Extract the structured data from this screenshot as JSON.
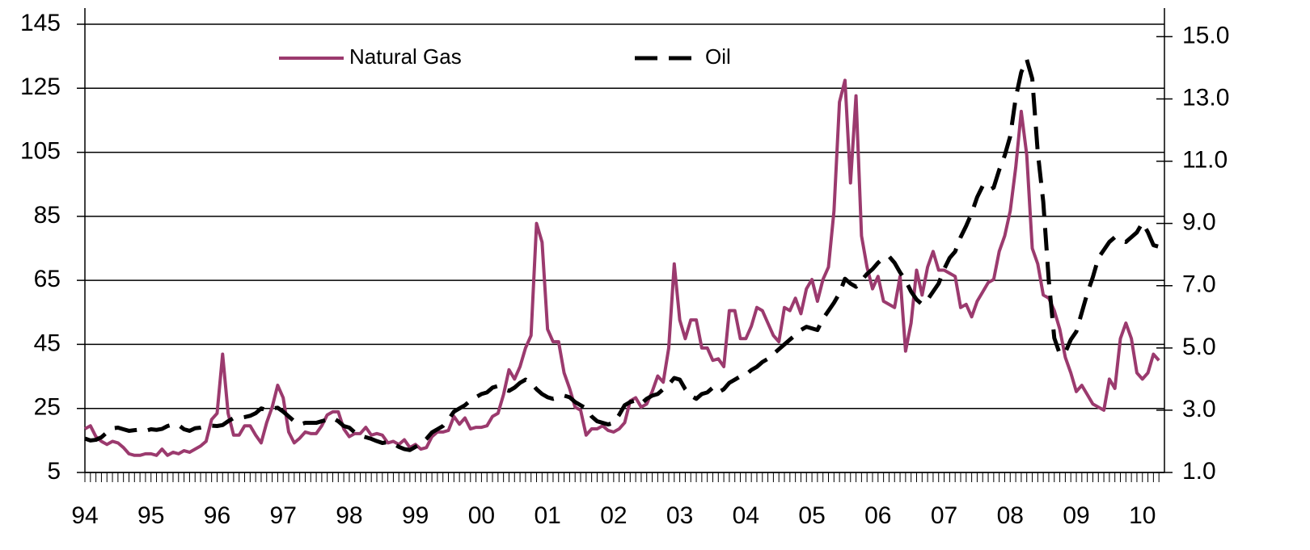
{
  "chart_data": {
    "type": "line",
    "categories": [
      "94",
      null,
      null,
      null,
      null,
      null,
      null,
      null,
      null,
      null,
      null,
      null,
      "95",
      null,
      null,
      null,
      null,
      null,
      null,
      null,
      null,
      null,
      null,
      null,
      "96",
      null,
      null,
      null,
      null,
      null,
      null,
      null,
      null,
      null,
      null,
      null,
      "97",
      null,
      null,
      null,
      null,
      null,
      null,
      null,
      null,
      null,
      null,
      null,
      "98",
      null,
      null,
      null,
      null,
      null,
      null,
      null,
      null,
      null,
      null,
      null,
      "99",
      null,
      null,
      null,
      null,
      null,
      null,
      null,
      null,
      null,
      null,
      null,
      "00",
      null,
      null,
      null,
      null,
      null,
      null,
      null,
      null,
      null,
      null,
      null,
      "01",
      null,
      null,
      null,
      null,
      null,
      null,
      null,
      null,
      null,
      null,
      null,
      "02",
      null,
      null,
      null,
      null,
      null,
      null,
      null,
      null,
      null,
      null,
      null,
      "03",
      null,
      null,
      null,
      null,
      null,
      null,
      null,
      null,
      null,
      null,
      null,
      "04",
      null,
      null,
      null,
      null,
      null,
      null,
      null,
      null,
      null,
      null,
      null,
      "05",
      null,
      null,
      null,
      null,
      null,
      null,
      null,
      null,
      null,
      null,
      null,
      "06",
      null,
      null,
      null,
      null,
      null,
      null,
      null,
      null,
      null,
      null,
      null,
      "07",
      null,
      null,
      null,
      null,
      null,
      null,
      null,
      null,
      null,
      null,
      null,
      "08",
      null,
      null,
      null,
      null,
      null,
      null,
      null,
      null,
      null,
      null,
      null,
      "09",
      null,
      null,
      null,
      null,
      null,
      null,
      null,
      null,
      null,
      null,
      null,
      "10",
      null,
      null,
      null
    ],
    "series": [
      {
        "name": "Natural Gas",
        "color": "#9b3a6e",
        "axis": "y2",
        "dash": false,
        "values": [
          2.4,
          2.5,
          2.15,
          2.0,
          1.9,
          2.0,
          1.95,
          1.8,
          1.6,
          1.55,
          1.55,
          1.6,
          1.6,
          1.55,
          1.75,
          1.55,
          1.65,
          1.6,
          1.7,
          1.65,
          1.75,
          1.85,
          2.0,
          2.7,
          2.9,
          4.8,
          2.9,
          2.2,
          2.2,
          2.5,
          2.5,
          2.2,
          1.95,
          2.6,
          3.1,
          3.8,
          3.4,
          2.3,
          1.95,
          2.1,
          2.3,
          2.25,
          2.25,
          2.5,
          2.85,
          2.95,
          2.95,
          2.4,
          2.15,
          2.25,
          2.25,
          2.45,
          2.2,
          2.25,
          2.2,
          1.95,
          2.0,
          1.9,
          2.05,
          1.8,
          1.9,
          1.75,
          1.8,
          2.15,
          2.3,
          2.3,
          2.35,
          2.8,
          2.55,
          2.75,
          2.4,
          2.45,
          2.45,
          2.5,
          2.8,
          2.9,
          3.5,
          4.3,
          4.0,
          4.4,
          5.0,
          5.4,
          9.0,
          8.4,
          5.6,
          5.2,
          5.2,
          4.2,
          3.7,
          3.1,
          3.0,
          2.2,
          2.4,
          2.4,
          2.5,
          2.35,
          2.3,
          2.4,
          2.6,
          3.3,
          3.4,
          3.1,
          3.2,
          3.6,
          4.1,
          3.9,
          5.0,
          7.7,
          5.9,
          5.3,
          5.9,
          5.9,
          5.0,
          5.0,
          4.6,
          4.65,
          4.4,
          6.2,
          6.2,
          5.3,
          5.3,
          5.7,
          6.3,
          6.2,
          5.8,
          5.4,
          5.2,
          6.3,
          6.2,
          6.6,
          6.1,
          6.9,
          7.2,
          6.5,
          7.2,
          7.6,
          9.4,
          12.9,
          13.6,
          10.3,
          13.1,
          8.6,
          7.6,
          6.9,
          7.3,
          6.5,
          6.4,
          6.3,
          7.3,
          4.9,
          5.8,
          7.5,
          6.7,
          7.6,
          8.1,
          7.5,
          7.5,
          7.4,
          7.3,
          6.3,
          6.4,
          6.0,
          6.5,
          6.8,
          7.1,
          7.2,
          8.1,
          8.6,
          9.4,
          10.8,
          12.6,
          11.2,
          8.2,
          7.7,
          6.7,
          6.6,
          6.2,
          5.6,
          4.7,
          4.2,
          3.6,
          3.8,
          3.5,
          3.2,
          3.1,
          3.0,
          4.0,
          3.7,
          5.3,
          5.8,
          5.3,
          4.2,
          4.0,
          4.2,
          4.8,
          4.6
        ]
      },
      {
        "name": "Oil",
        "color": "#000000",
        "axis": "y",
        "dash": true,
        "values": [
          15.6,
          15.0,
          15.2,
          16.0,
          17.5,
          18.8,
          19.0,
          18.5,
          18.0,
          18.2,
          18.4,
          18.0,
          18.5,
          18.3,
          18.6,
          19.5,
          20.0,
          19.8,
          18.5,
          18.0,
          18.8,
          19.0,
          19.4,
          19.6,
          19.5,
          19.8,
          21.0,
          22.0,
          22.0,
          22.3,
          22.7,
          23.5,
          25.0,
          24.5,
          25.0,
          25.2,
          24.0,
          22.5,
          21.0,
          20.0,
          20.5,
          20.5,
          20.5,
          21.0,
          21.5,
          22.0,
          21.0,
          19.5,
          19.0,
          17.5,
          16.5,
          16.0,
          15.5,
          14.8,
          14.2,
          14.5,
          14.0,
          13.0,
          12.3,
          12.0,
          13.0,
          13.8,
          15.5,
          17.5,
          18.5,
          19.5,
          21.5,
          24.0,
          25.0,
          26.0,
          27.5,
          28.5,
          29.5,
          30.0,
          31.5,
          32.0,
          31.0,
          30.5,
          31.5,
          33.0,
          34.0,
          33.0,
          31.0,
          29.5,
          28.5,
          28.0,
          28.5,
          29.0,
          28.5,
          27.0,
          26.0,
          25.0,
          22.5,
          21.0,
          20.5,
          20.0,
          20.5,
          23.0,
          26.0,
          27.0,
          27.5,
          26.5,
          28.0,
          29.0,
          29.5,
          31.0,
          32.5,
          34.5,
          34.0,
          31.0,
          29.0,
          28.0,
          29.5,
          30.0,
          31.5,
          30.0,
          31.0,
          33.0,
          34.0,
          35.0,
          35.5,
          37.0,
          38.0,
          39.5,
          40.5,
          42.0,
          43.5,
          45.0,
          46.5,
          48.0,
          49.5,
          50.5,
          50.0,
          49.5,
          53.0,
          55.5,
          58.0,
          61.0,
          65.5,
          64.0,
          63.0,
          65.0,
          67.0,
          68.5,
          70.5,
          72.0,
          72.5,
          70.5,
          67.5,
          65.0,
          61.5,
          59.0,
          57.5,
          59.0,
          61.5,
          64.0,
          68.5,
          72.0,
          74.0,
          78.5,
          82.0,
          86.0,
          91.0,
          94.5,
          93.0,
          94.0,
          99.5,
          104.0,
          110.0,
          122.0,
          130.0,
          134.0,
          128.0,
          105.0,
          89.5,
          65.0,
          47.0,
          42.0,
          42.5,
          46.5,
          49.0,
          55.0,
          61.0,
          66.0,
          72.0,
          74.5,
          77.0,
          78.5,
          77.5,
          77.0,
          78.5,
          80.0,
          83.0,
          80.0,
          76.0,
          75.5
        ]
      }
    ],
    "ylim": [
      5,
      145
    ],
    "yticks": [
      5,
      25,
      45,
      65,
      85,
      105,
      125,
      145
    ],
    "y2lim": [
      1,
      15.4
    ],
    "y2ticks": [
      {
        "value": 1,
        "label": "1.0"
      },
      {
        "value": 3,
        "label": "3.0"
      },
      {
        "value": 5,
        "label": "5.0"
      },
      {
        "value": 7,
        "label": "7.0"
      },
      {
        "value": 9,
        "label": "9.0"
      },
      {
        "value": 11,
        "label": "11.0"
      },
      {
        "value": 13,
        "label": "13.0"
      },
      {
        "value": 15,
        "label": "15.0"
      }
    ],
    "grid": true,
    "legend": "top"
  }
}
